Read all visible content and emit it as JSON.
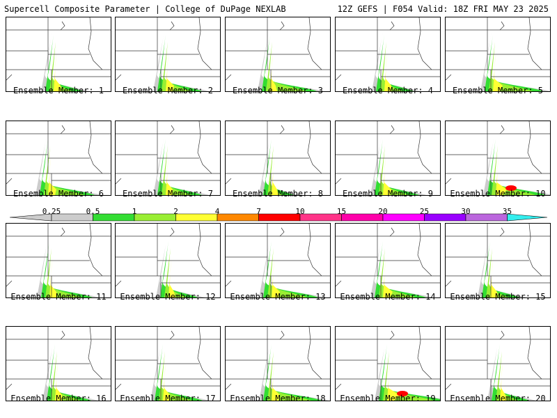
{
  "header": {
    "title_left": "Supercell Composite Parameter | College of DuPage NEXLAB",
    "title_right": "12Z GEFS | F054 Valid: 18Z FRI MAY 23 2025"
  },
  "colorbar": {
    "labels": [
      "0.25",
      "0.5",
      "1",
      "2",
      "4",
      "7",
      "10",
      "15",
      "20",
      "25",
      "30",
      "35"
    ],
    "colors": [
      "#cccccc",
      "#cccccc",
      "#33dd33",
      "#99ee33",
      "#ffff33",
      "#ff8800",
      "#ff0000",
      "#ff3388",
      "#ff00aa",
      "#ff00ff",
      "#9900ff",
      "#bb66dd",
      "#33eeee"
    ]
  },
  "members": [
    {
      "caption": "Ensemble Member: 1"
    },
    {
      "caption": "Ensemble Member: 2"
    },
    {
      "caption": "Ensemble Member: 3"
    },
    {
      "caption": "Ensemble Member: 4"
    },
    {
      "caption": "Ensemble Member: 5"
    },
    {
      "caption": "Ensemble Member: 6"
    },
    {
      "caption": "Ensemble Member: 7"
    },
    {
      "caption": "Ensemble Member: 8"
    },
    {
      "caption": "Ensemble Member: 9"
    },
    {
      "caption": "Ensemble Member: 10"
    },
    {
      "caption": "Ensemble Member: 11"
    },
    {
      "caption": "Ensemble Member: 12"
    },
    {
      "caption": "Ensemble Member: 13"
    },
    {
      "caption": "Ensemble Member: 14"
    },
    {
      "caption": "Ensemble Member: 15"
    },
    {
      "caption": "Ensemble Member: 16"
    },
    {
      "caption": "Ensemble Member: 17"
    },
    {
      "caption": "Ensemble Member: 18"
    },
    {
      "caption": "Ensemble Member: 19"
    },
    {
      "caption": "Ensemble Member: 20"
    }
  ]
}
